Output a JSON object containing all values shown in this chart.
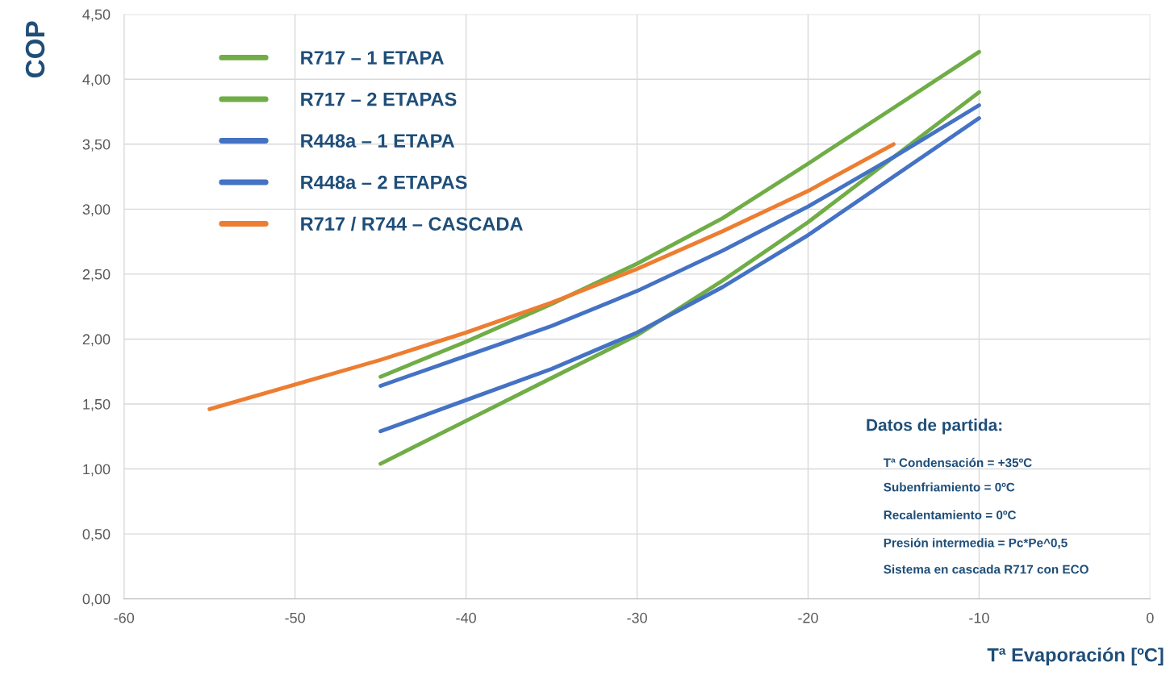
{
  "chart_data": {
    "type": "line",
    "xlabel": "Tª Evaporación [ºC]",
    "ylabel": "COP",
    "xlim": [
      -60,
      0
    ],
    "xticks": [
      -60,
      -50,
      -40,
      -30,
      -20,
      -10,
      0
    ],
    "ylim": [
      0,
      4.5
    ],
    "yticks": [
      {
        "value": 0,
        "label": "0,00"
      },
      {
        "value": 0.5,
        "label": "0,50"
      },
      {
        "value": 1,
        "label": "1,00"
      },
      {
        "value": 1.5,
        "label": "1,50"
      },
      {
        "value": 2,
        "label": "2,00"
      },
      {
        "value": 2.5,
        "label": "2,50"
      },
      {
        "value": 3,
        "label": "3,00"
      },
      {
        "value": 3.5,
        "label": "3,50"
      },
      {
        "value": 4,
        "label": "4,00"
      },
      {
        "value": 4.5,
        "label": "4,50"
      }
    ],
    "grid": true,
    "legend": "top left",
    "marker": "none",
    "line_style": "solid",
    "series": [
      {
        "name": "R717 – 1 ETAPA",
        "color": "#70ad47",
        "x": [
          -45,
          -40,
          -35,
          -30,
          -25,
          -20,
          -15,
          -10
        ],
        "values": [
          1.04,
          1.37,
          1.7,
          2.03,
          2.45,
          2.9,
          3.4,
          3.9
        ]
      },
      {
        "name": "R717 – 2 ETAPAS",
        "color": "#70ad47",
        "x": [
          -45,
          -40,
          -35,
          -30,
          -25,
          -20,
          -15,
          -10
        ],
        "values": [
          1.71,
          1.98,
          2.27,
          2.58,
          2.93,
          3.35,
          3.78,
          4.21
        ]
      },
      {
        "name": "R448a – 1 ETAPA",
        "color": "#4472c4",
        "x": [
          -45,
          -40,
          -35,
          -30,
          -25,
          -20,
          -15,
          -10
        ],
        "values": [
          1.29,
          1.53,
          1.77,
          2.05,
          2.4,
          2.8,
          3.25,
          3.7
        ]
      },
      {
        "name": "R448a – 2 ETAPAS",
        "color": "#4472c4",
        "x": [
          -45,
          -40,
          -35,
          -30,
          -25,
          -20,
          -15,
          -10
        ],
        "values": [
          1.64,
          1.87,
          2.1,
          2.37,
          2.68,
          3.02,
          3.4,
          3.8
        ]
      },
      {
        "name": "R717 / R744 – CASCADA",
        "color": "#ed7d31",
        "x": [
          -55,
          -50,
          -45,
          -40,
          -35,
          -30,
          -25,
          -20,
          -15
        ],
        "values": [
          1.46,
          1.65,
          1.84,
          2.05,
          2.28,
          2.54,
          2.83,
          3.14,
          3.5
        ]
      }
    ],
    "annotations": [
      "Datos de partida:",
      "Tª Condensación = +35ºC",
      "Subenfriamiento = 0ºC",
      "Recalentamiento = 0ºC",
      "Presión intermedia = Pc*Pe^0,5",
      "Sistema en cascada R717 con ECO"
    ]
  }
}
